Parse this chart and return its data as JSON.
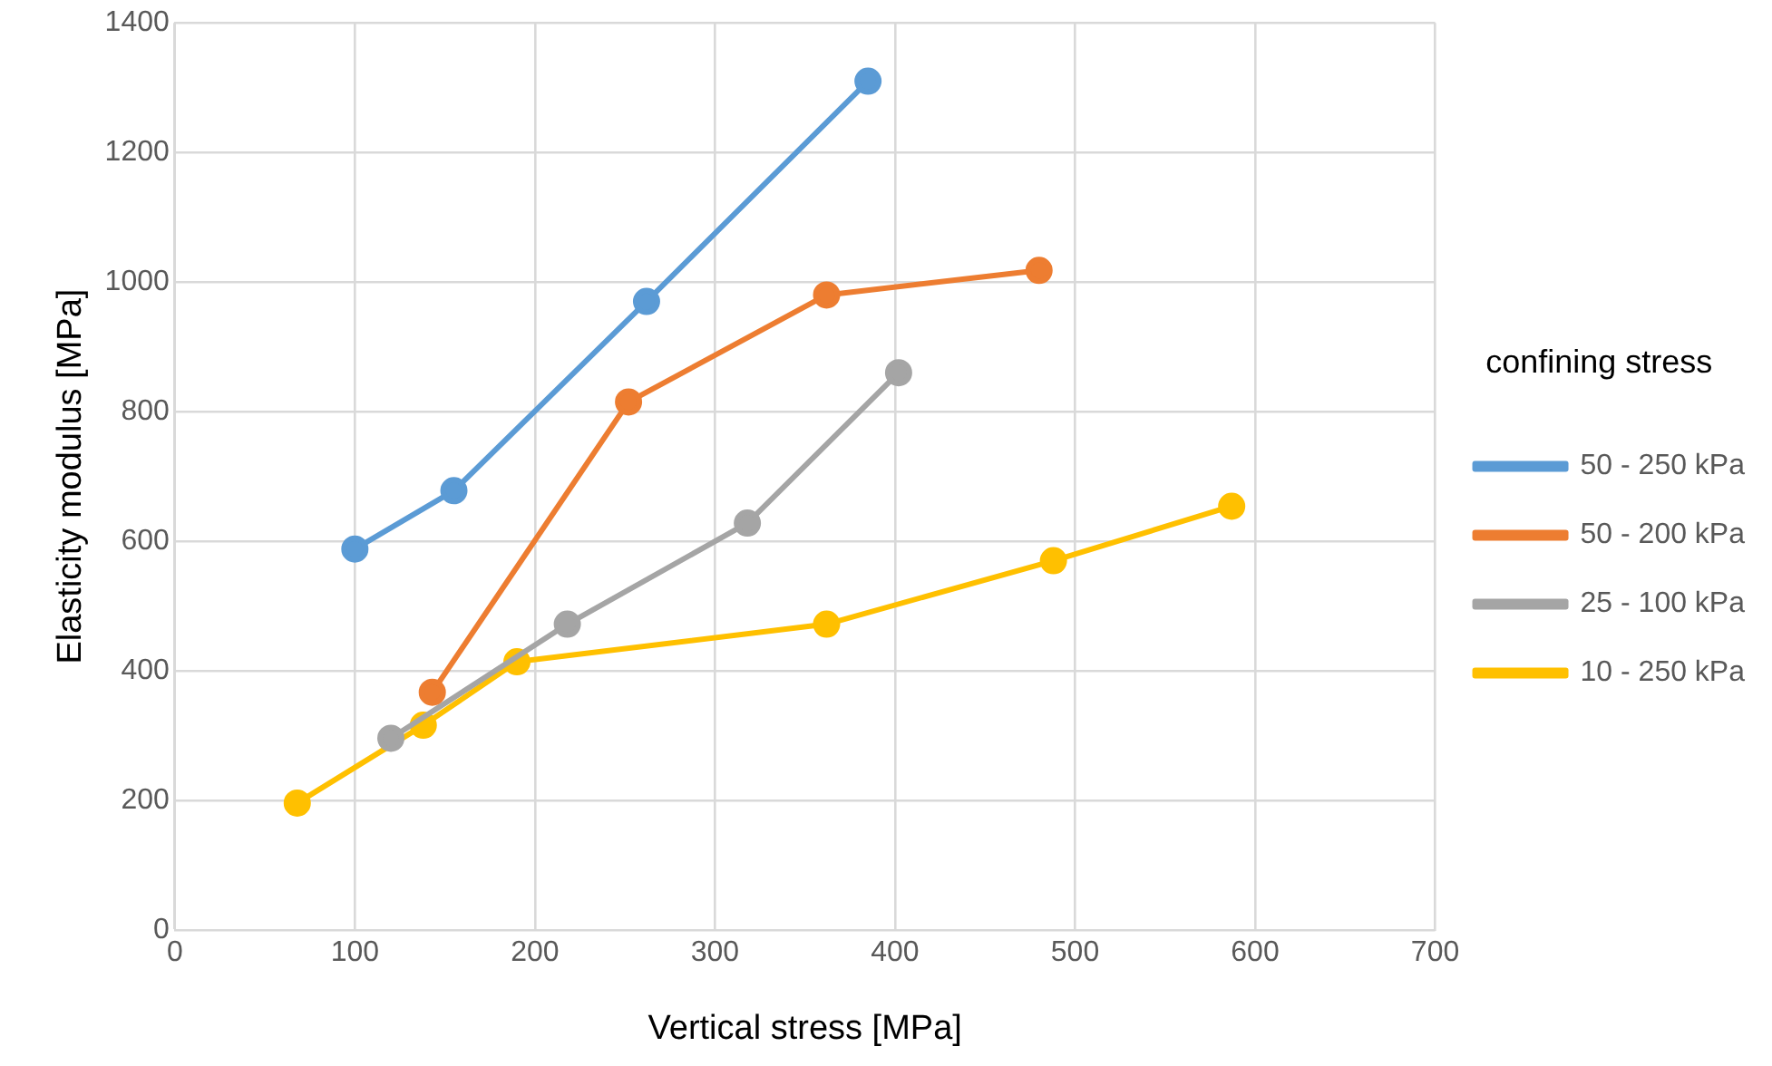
{
  "chart_data": {
    "type": "line",
    "xlabel": "Vertical stress [MPa]",
    "ylabel": "Elasticity modulus [MPa]",
    "legend_title": "confining stress",
    "legend": "right",
    "grid": true,
    "marker": "circle",
    "line_style": "solid",
    "xlim": [
      0,
      700
    ],
    "xticks": [
      0,
      100,
      200,
      300,
      400,
      500,
      600,
      700
    ],
    "ylim": [
      0,
      1400
    ],
    "yticks": [
      0,
      200,
      400,
      600,
      800,
      1000,
      1200,
      1400
    ],
    "series": [
      {
        "name": "50 - 250 kPa",
        "color": "#5b9bd5",
        "x": [
          100,
          155,
          262,
          385
        ],
        "values": [
          588,
          678,
          970,
          1310
        ]
      },
      {
        "name": "50 - 200 kPa",
        "color": "#ed7d31",
        "x": [
          143,
          252,
          362,
          480
        ],
        "values": [
          367,
          815,
          980,
          1018
        ]
      },
      {
        "name": "25 - 100 kPa",
        "color": "#a5a5a5",
        "x": [
          120,
          218,
          318,
          402
        ],
        "values": [
          296,
          472,
          628,
          860
        ]
      },
      {
        "name": "10 - 250 kPa",
        "color": "#ffc000",
        "x": [
          68,
          138,
          190,
          362,
          488,
          587
        ],
        "values": [
          196,
          316,
          414,
          472,
          570,
          654
        ]
      }
    ]
  }
}
